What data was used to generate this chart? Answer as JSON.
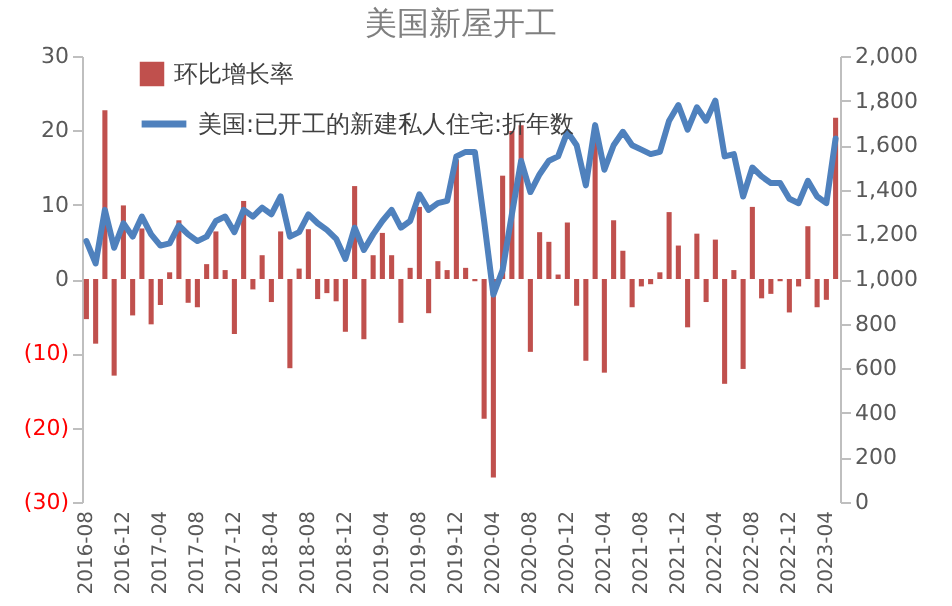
{
  "chart_data": {
    "type": "bar",
    "title": "美国新屋开工",
    "categories": [
      "2016-08",
      null,
      null,
      null,
      "2016-12",
      null,
      null,
      null,
      "2017-04",
      null,
      null,
      null,
      "2017-08",
      null,
      null,
      null,
      "2017-12",
      null,
      null,
      null,
      "2018-04",
      null,
      null,
      null,
      "2018-08",
      null,
      null,
      null,
      "2018-12",
      null,
      null,
      null,
      "2019-04",
      null,
      null,
      null,
      "2019-08",
      null,
      null,
      null,
      "2019-12",
      null,
      null,
      null,
      "2020-04",
      null,
      null,
      null,
      "2020-08",
      null,
      null,
      null,
      "2020-12",
      null,
      null,
      null,
      "2021-04",
      null,
      null,
      null,
      "2021-08",
      null,
      null,
      null,
      "2021-12",
      null,
      null,
      null,
      "2022-04",
      null,
      null,
      null,
      "2022-08",
      null,
      null,
      null,
      "2022-12",
      null,
      null,
      null,
      "2023-04",
      null
    ],
    "series": [
      {
        "name": "环比增长率",
        "color": "#c0504d",
        "values": [
          -5.4,
          -8.7,
          22.7,
          -13,
          9.9,
          -4.9,
          6.8,
          -6.1,
          -3.5,
          0.9,
          7.9,
          -3.2,
          -3.8,
          2,
          6.4,
          1.2,
          -7.4,
          10.5,
          -1.4,
          3.2,
          -3.1,
          6.4,
          -12,
          1.4,
          6.7,
          -2.7,
          -1.9,
          -3,
          -7.1,
          12.5,
          -8.1,
          3.2,
          6.2,
          3.2,
          -5.9,
          1.5,
          9.7,
          -4.6,
          2.4,
          1.2,
          16,
          1.5,
          -0.3,
          -18.8,
          -26.7,
          13.9,
          19.9,
          20.7,
          -9.8,
          6.3,
          5,
          0.6,
          7.6,
          -3.6,
          -11,
          18.8,
          -12.6,
          7.9,
          3.8,
          -3.8,
          -1,
          -0.7,
          0.9,
          9,
          4.5,
          -6.5,
          6.1,
          -3.1,
          5.3,
          -14.1,
          1.2,
          -12.1,
          9.7,
          -2.6,
          -2,
          -0.3,
          -4.5,
          -1,
          7.1,
          -3.8,
          -2.8,
          21.7
        ]
      },
      {
        "name": "美国:已开工的新建私人住宅:折年数",
        "type": "line",
        "axis": "y2",
        "color": "#4f81bd",
        "values": [
          1170,
          1070,
          1310,
          1140,
          1250,
          1190,
          1280,
          1200,
          1150,
          1160,
          1240,
          1200,
          1170,
          1190,
          1260,
          1280,
          1210,
          1310,
          1280,
          1320,
          1290,
          1370,
          1190,
          1210,
          1290,
          1250,
          1220,
          1180,
          1090,
          1230,
          1130,
          1200,
          1260,
          1310,
          1230,
          1260,
          1380,
          1310,
          1340,
          1350,
          1550,
          1570,
          1570,
          1260,
          930,
          1040,
          1290,
          1530,
          1390,
          1470,
          1530,
          1550,
          1660,
          1600,
          1420,
          1690,
          1490,
          1600,
          1660,
          1600,
          1580,
          1560,
          1570,
          1710,
          1780,
          1670,
          1770,
          1710,
          1800,
          1550,
          1560,
          1370,
          1500,
          1460,
          1430,
          1430,
          1360,
          1340,
          1440,
          1370,
          1340,
          1630
        ]
      }
    ],
    "ylim": [
      -30,
      30
    ],
    "yticks": [
      30,
      20,
      10,
      0,
      {
        "value": -10,
        "label": "(10)"
      },
      {
        "value": -20,
        "label": "(20)"
      },
      {
        "value": -30,
        "label": "(30)"
      }
    ],
    "y2lim": [
      0,
      2000
    ],
    "y2ticks": [
      0,
      200,
      400,
      600,
      800,
      {
        "value": 1000,
        "label": "1,000"
      },
      {
        "value": 1200,
        "label": "1,200"
      },
      {
        "value": 1400,
        "label": "1,400"
      },
      {
        "value": 1600,
        "label": "1,600"
      },
      {
        "value": 1800,
        "label": "1,800"
      },
      {
        "value": 2000,
        "label": "2,000"
      }
    ],
    "legend": "top left"
  }
}
